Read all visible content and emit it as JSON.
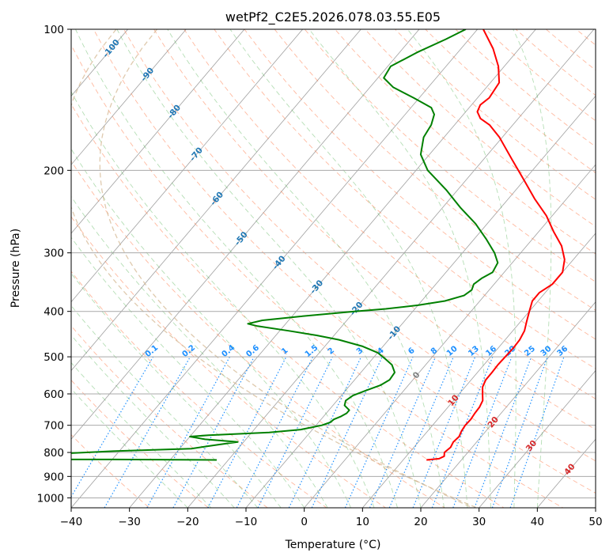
{
  "chart_data": {
    "type": "line",
    "chart_kind": "skew-T log-P diagram",
    "title": "wetPf2_C2E5.2026.078.03.55.E05",
    "xlabel": "Temperature (°C)",
    "ylabel": "Pressure (hPa)",
    "xlim": [
      -40,
      50
    ],
    "ylim": [
      1050,
      100
    ],
    "x_ticks": [
      -40,
      -30,
      -20,
      -10,
      0,
      10,
      20,
      30,
      40,
      50
    ],
    "x_tick_labels": [
      "−40",
      "−30",
      "−20",
      "−10",
      "0",
      "10",
      "20",
      "30",
      "40",
      "50"
    ],
    "y_ticks": [
      100,
      200,
      300,
      400,
      500,
      600,
      700,
      800,
      900,
      1000
    ],
    "y_tick_labels": [
      "100",
      "200",
      "300",
      "400",
      "500",
      "600",
      "700",
      "800",
      "900",
      "1000"
    ],
    "y_scale": "log",
    "isotherm_grid": true,
    "series": [
      {
        "name": "Temperature",
        "color": "#ff0000",
        "points": [
          [
            830,
            14.0
          ],
          [
            825,
            16.0
          ],
          [
            815,
            16.5
          ],
          [
            800,
            16.0
          ],
          [
            780,
            16.3
          ],
          [
            760,
            16.0
          ],
          [
            740,
            16.2
          ],
          [
            720,
            15.8
          ],
          [
            700,
            15.6
          ],
          [
            680,
            15.7
          ],
          [
            660,
            15.5
          ],
          [
            640,
            15.4
          ],
          [
            620,
            15.0
          ],
          [
            600,
            14.0
          ],
          [
            580,
            13.0
          ],
          [
            560,
            12.5
          ],
          [
            540,
            12.5
          ],
          [
            520,
            12.4
          ],
          [
            500,
            12.5
          ],
          [
            480,
            12.6
          ],
          [
            460,
            12.5
          ],
          [
            440,
            12.0
          ],
          [
            420,
            11.0
          ],
          [
            400,
            10.0
          ],
          [
            380,
            9.0
          ],
          [
            365,
            9.0
          ],
          [
            350,
            10.0
          ],
          [
            330,
            10.0
          ],
          [
            310,
            8.5
          ],
          [
            290,
            6.0
          ],
          [
            270,
            2.5
          ],
          [
            250,
            -1.0
          ],
          [
            230,
            -5.5
          ],
          [
            210,
            -10.0
          ],
          [
            190,
            -15.0
          ],
          [
            170,
            -20.5
          ],
          [
            160,
            -24.0
          ],
          [
            155,
            -26.5
          ],
          [
            150,
            -28.0
          ],
          [
            145,
            -28.5
          ],
          [
            140,
            -28.0
          ],
          [
            130,
            -28.5
          ],
          [
            120,
            -31.0
          ],
          [
            110,
            -34.5
          ],
          [
            100,
            -39.0
          ]
        ]
      },
      {
        "name": "Dewpoint",
        "color": "#008000",
        "points": [
          [
            830,
            -22.0
          ],
          [
            828,
            -40.0
          ],
          [
            828,
            -52.0
          ],
          [
            820,
            -52.0
          ],
          [
            805,
            -50.0
          ],
          [
            795,
            -41.0
          ],
          [
            785,
            -28.0
          ],
          [
            770,
            -24.0
          ],
          [
            760,
            -21.0
          ],
          [
            750,
            -27.0
          ],
          [
            740,
            -30.0
          ],
          [
            735,
            -27.0
          ],
          [
            725,
            -17.0
          ],
          [
            715,
            -12.0
          ],
          [
            700,
            -9.0
          ],
          [
            690,
            -8.0
          ],
          [
            680,
            -7.8
          ],
          [
            670,
            -7.0
          ],
          [
            660,
            -6.5
          ],
          [
            650,
            -6.5
          ],
          [
            635,
            -8.0
          ],
          [
            620,
            -8.5
          ],
          [
            605,
            -8.0
          ],
          [
            590,
            -6.5
          ],
          [
            575,
            -4.8
          ],
          [
            560,
            -4.0
          ],
          [
            540,
            -4.2
          ],
          [
            520,
            -5.8
          ],
          [
            505,
            -7.8
          ],
          [
            490,
            -10.0
          ],
          [
            475,
            -13.5
          ],
          [
            460,
            -18.5
          ],
          [
            450,
            -23.0
          ],
          [
            440,
            -28.5
          ],
          [
            430,
            -34.5
          ],
          [
            425,
            -36.5
          ],
          [
            418,
            -34.5
          ],
          [
            410,
            -28.5
          ],
          [
            400,
            -20.0
          ],
          [
            395,
            -15.0
          ],
          [
            388,
            -10.0
          ],
          [
            380,
            -6.0
          ],
          [
            370,
            -3.5
          ],
          [
            360,
            -3.0
          ],
          [
            350,
            -3.5
          ],
          [
            340,
            -3.0
          ],
          [
            330,
            -2.0
          ],
          [
            315,
            -2.5
          ],
          [
            300,
            -4.5
          ],
          [
            280,
            -8.0
          ],
          [
            260,
            -12.0
          ],
          [
            240,
            -17.0
          ],
          [
            220,
            -22.0
          ],
          [
            200,
            -28.0
          ],
          [
            185,
            -31.5
          ],
          [
            170,
            -33.5
          ],
          [
            160,
            -34.0
          ],
          [
            152,
            -35.0
          ],
          [
            147,
            -36.5
          ],
          [
            140,
            -41.0
          ],
          [
            133,
            -46.0
          ],
          [
            127,
            -49.0
          ],
          [
            120,
            -49.5
          ],
          [
            112,
            -47.0
          ],
          [
            105,
            -44.0
          ],
          [
            100,
            -42.0
          ]
        ]
      }
    ],
    "isotherm_labels": [
      {
        "value": -100,
        "p": 110,
        "text": "-100"
      },
      {
        "value": -90,
        "p": 125,
        "text": "-90"
      },
      {
        "value": -80,
        "p": 150,
        "text": "-80"
      },
      {
        "value": -70,
        "p": 185,
        "text": "-70"
      },
      {
        "value": -60,
        "p": 230,
        "text": "-60"
      },
      {
        "value": -50,
        "p": 280,
        "text": "-50"
      },
      {
        "value": -40,
        "p": 315,
        "text": "-40"
      },
      {
        "value": -30,
        "p": 355,
        "text": "-30"
      },
      {
        "value": -20,
        "p": 395,
        "text": "-20"
      },
      {
        "value": -10,
        "p": 445,
        "text": "-10"
      },
      {
        "value": 0,
        "p": 548,
        "text": "0"
      },
      {
        "value": 10,
        "p": 620,
        "text": "10"
      },
      {
        "value": 20,
        "p": 690,
        "text": "20"
      },
      {
        "value": 30,
        "p": 775,
        "text": "30"
      },
      {
        "value": 40,
        "p": 870,
        "text": "40"
      }
    ],
    "mixing_ratio_labels": [
      "0.1",
      "0.2",
      "0.4",
      "0.6",
      "1",
      "1.5",
      "2",
      "3",
      "4",
      "6",
      "8",
      "10",
      "13",
      "16",
      "20",
      "25",
      "30",
      "36"
    ],
    "mixing_ratio_label_pressure": 500
  },
  "colors": {
    "isotherm": "#a0a0a0",
    "dry_adiabat": "#ff7f50",
    "moist_adiabat": "#2ca02c",
    "mixing_ratio": "#1e90ff",
    "cold_isotherm_label": "#1f77b4",
    "warm_isotherm_label": "#d62728",
    "zero_isotherm_label": "#808080",
    "boundary_curve": "#d2b48c"
  }
}
